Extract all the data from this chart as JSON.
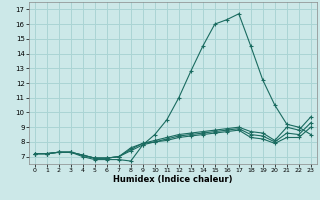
{
  "xlabel": "Humidex (Indice chaleur)",
  "bg_color": "#cce8e8",
  "grid_color": "#aad4d4",
  "line_color": "#1a6b60",
  "xlim": [
    -0.5,
    23.5
  ],
  "ylim": [
    6.5,
    17.5
  ],
  "xticks": [
    0,
    1,
    2,
    3,
    4,
    5,
    6,
    7,
    8,
    9,
    10,
    11,
    12,
    13,
    14,
    15,
    16,
    17,
    18,
    19,
    20,
    21,
    22,
    23
  ],
  "yticks": [
    7,
    8,
    9,
    10,
    11,
    12,
    13,
    14,
    15,
    16,
    17
  ],
  "series": [
    [
      7.2,
      7.2,
      7.3,
      7.3,
      7.0,
      6.8,
      6.8,
      6.8,
      6.7,
      7.8,
      8.5,
      9.5,
      11.0,
      12.8,
      14.5,
      16.0,
      16.3,
      16.7,
      14.5,
      12.2,
      10.5,
      9.2,
      9.0,
      8.5
    ],
    [
      7.2,
      7.2,
      7.3,
      7.3,
      7.1,
      6.9,
      6.9,
      7.0,
      7.6,
      7.9,
      8.1,
      8.3,
      8.5,
      8.6,
      8.7,
      8.8,
      8.9,
      9.0,
      8.7,
      8.6,
      8.1,
      9.0,
      8.8,
      9.7
    ],
    [
      7.2,
      7.2,
      7.3,
      7.3,
      7.1,
      6.9,
      6.9,
      7.0,
      7.5,
      7.9,
      8.0,
      8.2,
      8.4,
      8.5,
      8.6,
      8.7,
      8.8,
      8.9,
      8.5,
      8.4,
      8.0,
      8.6,
      8.5,
      9.3
    ],
    [
      7.2,
      7.2,
      7.3,
      7.3,
      7.1,
      6.9,
      6.9,
      7.0,
      7.4,
      7.8,
      8.0,
      8.1,
      8.3,
      8.4,
      8.5,
      8.6,
      8.7,
      8.8,
      8.3,
      8.2,
      7.9,
      8.3,
      8.3,
      9.0
    ]
  ]
}
